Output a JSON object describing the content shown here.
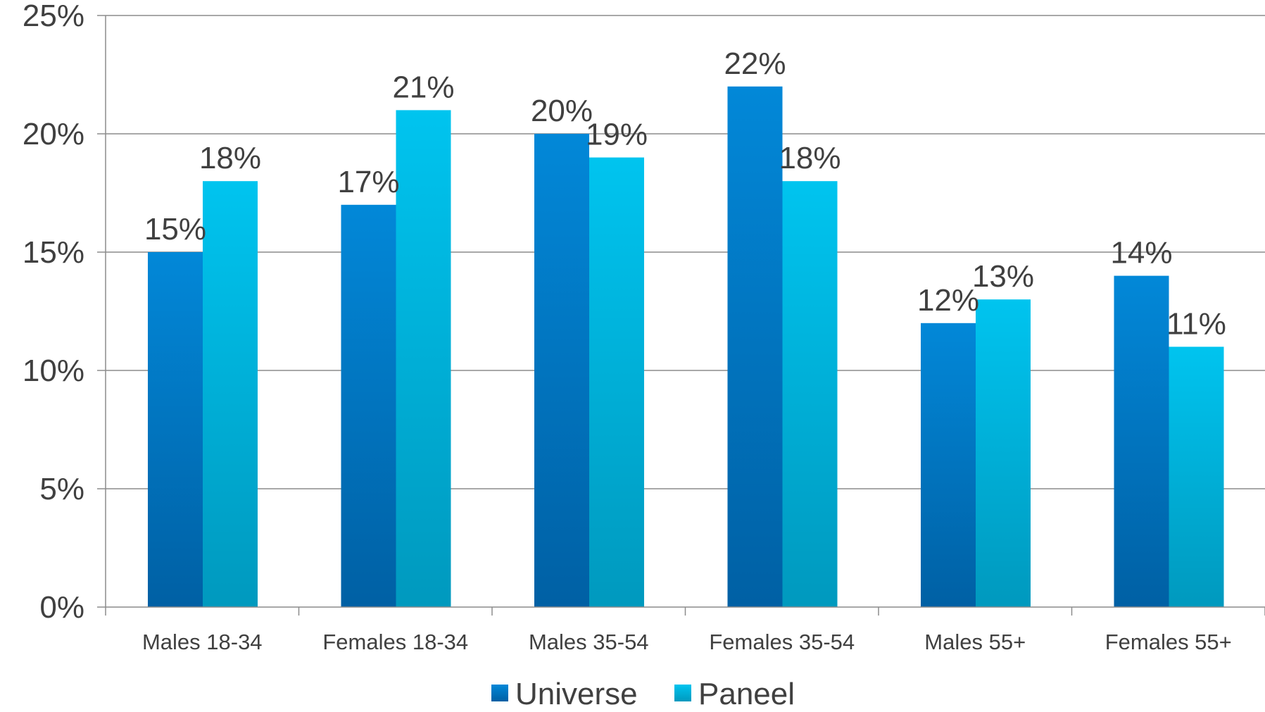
{
  "chart_data": {
    "type": "bar",
    "categories": [
      "Males 18-34",
      "Females 18-34",
      "Males 35-54",
      "Females 35-54",
      "Males 55+",
      "Females 55+"
    ],
    "series": [
      {
        "name": "Universe",
        "values": [
          15,
          17,
          20,
          22,
          12,
          14
        ],
        "labels": [
          "15%",
          "17%",
          "20%",
          "22%",
          "12%",
          "14%"
        ],
        "color_top": "#0288d8",
        "color_bottom": "#0060a4"
      },
      {
        "name": "Paneel",
        "values": [
          18,
          21,
          19,
          18,
          13,
          11
        ],
        "labels": [
          "18%",
          "21%",
          "19%",
          "18%",
          "13%",
          "11%"
        ],
        "color_top": "#00c4ef",
        "color_bottom": "#0099be"
      }
    ],
    "ylim": [
      0,
      25
    ],
    "yticks": [
      0,
      5,
      10,
      15,
      20,
      25
    ],
    "ytick_labels": [
      "0%",
      "5%",
      "10%",
      "15%",
      "20%",
      "25%"
    ],
    "title": "",
    "xlabel": "",
    "ylabel": "",
    "grid": true,
    "legend_position": "bottom-center",
    "gridline_color": "#8c8c8c",
    "text_color": "#404040"
  }
}
